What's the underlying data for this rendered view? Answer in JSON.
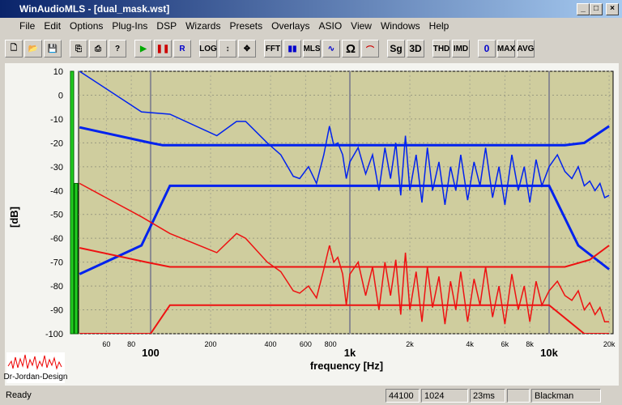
{
  "window": {
    "title": "WinAudioMLS - [dual_mask.wst]"
  },
  "menu": [
    "File",
    "Edit",
    "Options",
    "Plug-Ins",
    "DSP",
    "Wizards",
    "Presets",
    "Overlays",
    "ASIO",
    "View",
    "Windows",
    "Help"
  ],
  "toolbar": [
    "R",
    "LOG",
    "FFT",
    "MLS",
    "Ω",
    "Sg",
    "3D",
    "THD",
    "IMD",
    "0",
    "MAX",
    "AVG"
  ],
  "logo": "Dr-Jordan-Design",
  "status": [
    "Ready",
    "44100",
    "1024",
    "23ms",
    "Blackman"
  ],
  "chart_data": {
    "type": "line",
    "log_x": true,
    "grid": true,
    "x_label": "frequency [Hz]",
    "y_label": "[dB]",
    "xlim": [
      43.5,
      20940
    ],
    "ylim": [
      -100,
      10
    ],
    "xticks": [
      60,
      80,
      100,
      200,
      400,
      600,
      800,
      {
        "value": 1000,
        "label": "1k"
      },
      {
        "value": 2000,
        "label": "2k"
      },
      {
        "value": 4000,
        "label": "4k"
      },
      {
        "value": 6000,
        "label": "6k"
      },
      {
        "value": 8000,
        "label": "8k"
      },
      {
        "value": 10000,
        "label": "10k"
      },
      {
        "value": 20000,
        "label": "20k"
      }
    ],
    "yticks": [
      10,
      0,
      -10,
      -20,
      -30,
      -40,
      -50,
      -60,
      -70,
      -80,
      -90,
      -100
    ],
    "meters": {
      "color": "#22cc22",
      "values": [
        10,
        -37
      ]
    },
    "series": [
      {
        "color": "#0022ee",
        "width": 1.5,
        "x": [
          44,
          90,
          125,
          215,
          270,
          300,
          385,
          450,
          520,
          560,
          620,
          680,
          740,
          790,
          830,
          870,
          920,
          960,
          1000,
          1100,
          1200,
          1300,
          1400,
          1500,
          1600,
          1700,
          1800,
          1900,
          2000,
          2150,
          2300,
          2450,
          2600,
          2800,
          3000,
          3200,
          3400,
          3600,
          3900,
          4200,
          4500,
          4800,
          5200,
          5600,
          6000,
          6500,
          7000,
          7500,
          8000,
          8600,
          9200,
          10000,
          11000,
          12000,
          13000,
          14000,
          15000,
          16000,
          17000,
          18000,
          19000,
          20000
        ],
        "values": [
          10,
          -7,
          -8,
          -17,
          -11,
          -11,
          -20,
          -25,
          -34,
          -35,
          -30,
          -37,
          -25,
          -13,
          -21,
          -20,
          -25,
          -35,
          -28,
          -22,
          -33,
          -25,
          -40,
          -22,
          -35,
          -20,
          -42,
          -17,
          -40,
          -25,
          -45,
          -22,
          -40,
          -28,
          -46,
          -30,
          -40,
          -25,
          -44,
          -28,
          -38,
          -22,
          -43,
          -30,
          -46,
          -25,
          -40,
          -30,
          -45,
          -27,
          -38,
          -30,
          -25,
          -32,
          -35,
          -30,
          -38,
          -36,
          -40,
          -37,
          -43,
          -42
        ]
      },
      {
        "color": "#0022ee",
        "width": 3,
        "x": [
          44,
          100,
          115,
          12000,
          15000,
          20000
        ],
        "values": [
          -13.5,
          -20,
          -21,
          -21,
          -20,
          -13
        ]
      },
      {
        "color": "#0022ee",
        "width": 3,
        "x": [
          44,
          90,
          125,
          10000,
          14000,
          20000
        ],
        "values": [
          -75,
          -63,
          -38,
          -38,
          -63,
          -73
        ]
      },
      {
        "color": "#ee1111",
        "width": 1.5,
        "x": [
          44,
          90,
          125,
          215,
          270,
          300,
          385,
          450,
          520,
          560,
          620,
          680,
          740,
          790,
          830,
          870,
          920,
          960,
          1000,
          1100,
          1200,
          1300,
          1400,
          1500,
          1600,
          1700,
          1800,
          1900,
          2000,
          2150,
          2300,
          2450,
          2600,
          2800,
          3000,
          3200,
          3400,
          3600,
          3900,
          4200,
          4500,
          4800,
          5200,
          5600,
          6000,
          6500,
          7000,
          7500,
          8000,
          8600,
          9200,
          10000,
          11000,
          12000,
          13000,
          14000,
          15000,
          16000,
          17000,
          18000,
          19000,
          20000
        ],
        "values": [
          -37,
          -51,
          -58,
          -66,
          -58,
          -60,
          -70,
          -74,
          -82,
          -83,
          -80,
          -85,
          -73,
          -63,
          -70,
          -68,
          -75,
          -88,
          -75,
          -70,
          -84,
          -72,
          -90,
          -70,
          -84,
          -69,
          -92,
          -66,
          -90,
          -74,
          -95,
          -72,
          -89,
          -76,
          -96,
          -78,
          -90,
          -74,
          -95,
          -77,
          -88,
          -72,
          -93,
          -80,
          -96,
          -75,
          -90,
          -80,
          -95,
          -78,
          -88,
          -82,
          -78,
          -84,
          -86,
          -82,
          -90,
          -87,
          -92,
          -89,
          -95,
          -95
        ]
      },
      {
        "color": "#ee1111",
        "width": 2,
        "x": [
          44,
          95,
          125,
          12000,
          16000,
          20000
        ],
        "values": [
          -64,
          -70,
          -72,
          -72,
          -69,
          -63
        ]
      },
      {
        "color": "#ee1111",
        "width": 2,
        "x": [
          44,
          100,
          125,
          10000,
          15000,
          20000
        ],
        "values": [
          -100,
          -100,
          -88,
          -88,
          -100,
          -100
        ]
      }
    ]
  }
}
